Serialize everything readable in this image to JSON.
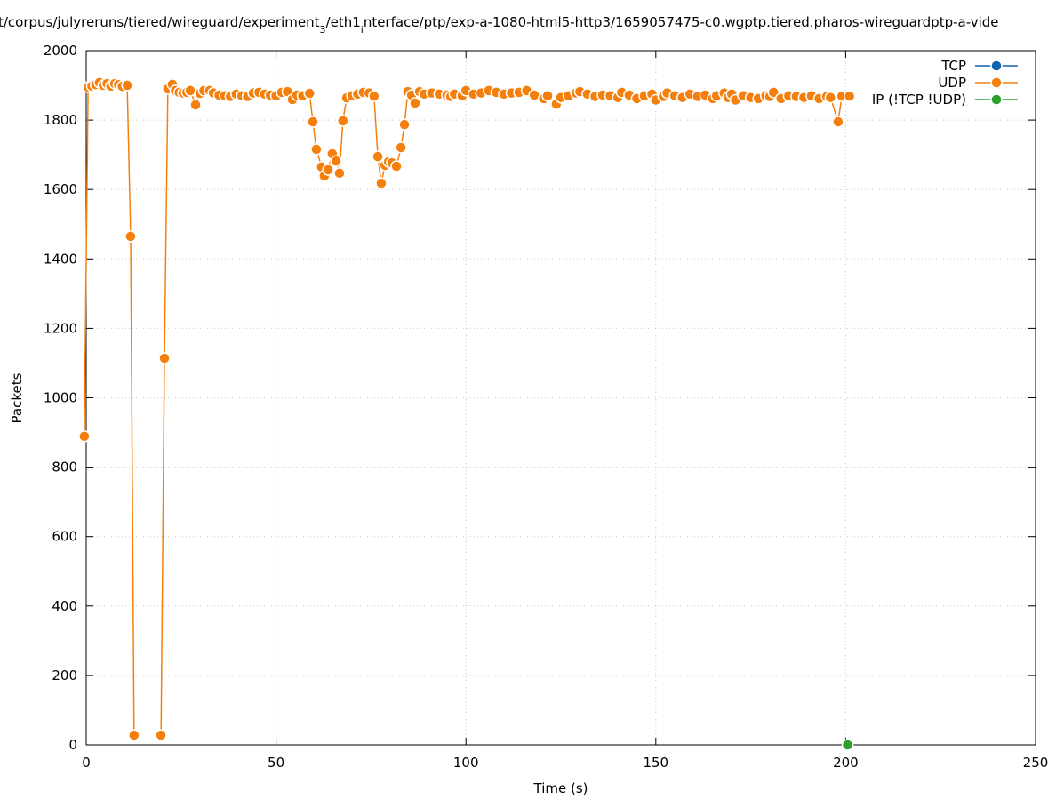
{
  "chart_data": {
    "type": "line",
    "title": [
      "t/corpus/julyreruns/tiered/wireguard/experiment",
      "3",
      "/eth1",
      "i",
      "nterface/ptp/exp-a-1080-html5-http3/1659057475-c0.wgptp.tiered.pharos-wireguardptp-a-vide"
    ],
    "x_label": "Time (s)",
    "y_label": "Packets",
    "xlim": [
      0,
      250
    ],
    "xticks": [
      0,
      50,
      100,
      150,
      200,
      250
    ],
    "ylim": [
      0,
      2000
    ],
    "yticks": [
      0,
      200,
      400,
      600,
      800,
      1000,
      1200,
      1400,
      1600,
      1800,
      2000
    ],
    "grid": true,
    "legend": "upper right",
    "series": [
      {
        "name": "TCP",
        "color": "#0f63b1",
        "x": [],
        "values": []
      },
      {
        "name": "UDP",
        "color": "#f47f0d",
        "x": [
          -0.5,
          0.5,
          1.5,
          2.5,
          3.5,
          4.5,
          5.5,
          6.5,
          7.5,
          8.5,
          9.5,
          10.8,
          11.7,
          12.6,
          16,
          19.7,
          20.6,
          21.5,
          22.7,
          23.5,
          24.5,
          25.5,
          26.5,
          27.4,
          28.8,
          30,
          31,
          32.5,
          33.5,
          35,
          36.5,
          38,
          39.5,
          41,
          42.5,
          44,
          45.5,
          47,
          48.5,
          50,
          51.5,
          53,
          54.3,
          55.5,
          57,
          58.8,
          59.7,
          60.6,
          62,
          62.7,
          63.7,
          64.8,
          65.8,
          66.7,
          67.6,
          68.6,
          70,
          71.5,
          73,
          74.5,
          75.8,
          76.8,
          77.7,
          78.7,
          79.6,
          80.5,
          81.7,
          82.9,
          83.8,
          84.7,
          85.7,
          86.6,
          87.8,
          89,
          91,
          93,
          95,
          96,
          97,
          99,
          100,
          102,
          104,
          106,
          108,
          110,
          112,
          114,
          116,
          118,
          120.5,
          121.5,
          123.8,
          125,
          127,
          129,
          130,
          132,
          134,
          136,
          138,
          140,
          141,
          143,
          145,
          147,
          149,
          150,
          152,
          153,
          155,
          157,
          159,
          161,
          163,
          165,
          166,
          168,
          169,
          170,
          171,
          173,
          175,
          177,
          179,
          180,
          181,
          183,
          185,
          187,
          189,
          191,
          193,
          195,
          196,
          198,
          199,
          201
        ],
        "values": [
          889,
          1895,
          1898,
          1902,
          1908,
          1900,
          1905,
          1898,
          1905,
          1902,
          1897,
          1900,
          1465,
          28,
          null,
          28,
          1114,
          1890,
          1903,
          1885,
          1880,
          1878,
          1880,
          1885,
          1844,
          1877,
          1885,
          1885,
          1878,
          1872,
          1870,
          1868,
          1875,
          1870,
          1868,
          1878,
          1880,
          1875,
          1872,
          1870,
          1880,
          1882,
          1859,
          1872,
          1870,
          1877,
          1795,
          1716,
          1665,
          1639,
          1657,
          1703,
          1682,
          1647,
          1798,
          1864,
          1870,
          1875,
          1880,
          1878,
          1869,
          1695,
          1618,
          1670,
          1680,
          1677,
          1667,
          1721,
          1787,
          1882,
          1872,
          1849,
          1882,
          1875,
          1878,
          1875,
          1872,
          1868,
          1875,
          1870,
          1885,
          1875,
          1878,
          1885,
          1880,
          1875,
          1878,
          1880,
          1885,
          1872,
          1862,
          1870,
          1846,
          1865,
          1870,
          1878,
          1882,
          1875,
          1868,
          1872,
          1870,
          1865,
          1880,
          1872,
          1862,
          1870,
          1875,
          1858,
          1868,
          1878,
          1870,
          1865,
          1875,
          1868,
          1872,
          1862,
          1870,
          1878,
          1865,
          1875,
          1858,
          1870,
          1865,
          1862,
          1870,
          1868,
          1880,
          1862,
          1870,
          1868,
          1865,
          1870,
          1862,
          1868,
          1865,
          1795,
          1869,
          1869
        ]
      },
      {
        "name": "IP (!TCP  !UDP)",
        "color": "#2ca02c",
        "x": [
          200.5
        ],
        "values": [
          0
        ]
      }
    ]
  }
}
